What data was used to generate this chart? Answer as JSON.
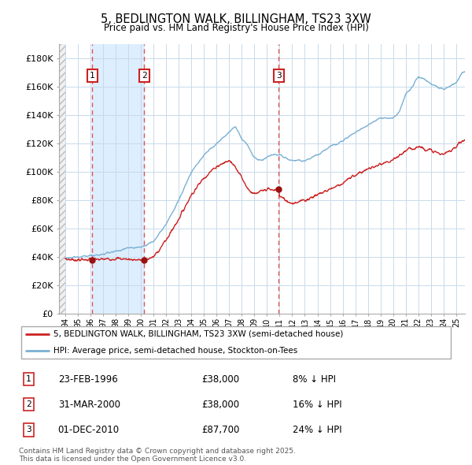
{
  "title": "5, BEDLINGTON WALK, BILLINGHAM, TS23 3XW",
  "subtitle": "Price paid vs. HM Land Registry's House Price Index (HPI)",
  "ylim": [
    0,
    190000
  ],
  "yticks": [
    0,
    20000,
    40000,
    60000,
    80000,
    100000,
    120000,
    140000,
    160000,
    180000
  ],
  "ytick_labels": [
    "£0",
    "£20K",
    "£40K",
    "£60K",
    "£80K",
    "£100K",
    "£120K",
    "£140K",
    "£160K",
    "£180K"
  ],
  "sale_decimal": [
    1996.14,
    2000.25,
    2010.92
  ],
  "sale_prices": [
    38000,
    38000,
    87700
  ],
  "sale_labels": [
    "1",
    "2",
    "3"
  ],
  "hpi_color": "#7ab0d4",
  "price_color": "#cc2222",
  "vline_color": "#dd4444",
  "grid_color": "#c8daea",
  "bg_band_color": "#ddeeff",
  "legend_label_price": "5, BEDLINGTON WALK, BILLINGHAM, TS23 3XW (semi-detached house)",
  "legend_label_hpi": "HPI: Average price, semi-detached house, Stockton-on-Tees",
  "table_entries": [
    {
      "num": "1",
      "date": "23-FEB-1996",
      "price": "£38,000",
      "pct": "8% ↓ HPI"
    },
    {
      "num": "2",
      "date": "31-MAR-2000",
      "price": "£38,000",
      "pct": "16% ↓ HPI"
    },
    {
      "num": "3",
      "date": "01-DEC-2010",
      "price": "£87,700",
      "pct": "24% ↓ HPI"
    }
  ],
  "footer": "Contains HM Land Registry data © Crown copyright and database right 2025.\nThis data is licensed under the Open Government Licence v3.0.",
  "xlim_start": 1993.5,
  "xlim_end": 2025.7,
  "hpi_key_years": [
    1994,
    1995,
    1996,
    1997,
    1998,
    1999,
    2000,
    2001,
    2002,
    2003,
    2004,
    2005,
    2006,
    2007,
    2007.5,
    2008,
    2008.5,
    2009,
    2009.5,
    2010,
    2010.5,
    2011,
    2011.5,
    2012,
    2013,
    2014,
    2015,
    2016,
    2017,
    2018,
    2019,
    2020,
    2020.5,
    2021,
    2021.5,
    2022,
    2022.5,
    2023,
    2023.5,
    2024,
    2024.5,
    2025,
    2025.5
  ],
  "hpi_key_vals": [
    39000,
    40000,
    41000,
    42000,
    44000,
    46500,
    47000,
    51000,
    63000,
    80000,
    100000,
    112000,
    120000,
    128000,
    132000,
    124000,
    118000,
    110000,
    108000,
    110000,
    112000,
    112000,
    110000,
    108000,
    108000,
    112000,
    118000,
    122000,
    128000,
    133000,
    138000,
    138000,
    142000,
    155000,
    160000,
    167000,
    165000,
    162000,
    160000,
    158000,
    160000,
    163000,
    170000
  ],
  "price_key_years": [
    1994,
    1995,
    1996,
    1996.15,
    1997,
    1998,
    1999,
    2000,
    2000.25,
    2001,
    2002,
    2003,
    2004,
    2005,
    2006,
    2007,
    2007.5,
    2008,
    2008.5,
    2009,
    2009.5,
    2010,
    2010.5,
    2010.92,
    2011,
    2011.5,
    2012,
    2013,
    2014,
    2015,
    2016,
    2017,
    2018,
    2019,
    2020,
    2021,
    2022,
    2023,
    2024,
    2025,
    2025.5
  ],
  "price_key_vals": [
    38500,
    38000,
    38500,
    38000,
    38500,
    39000,
    38500,
    38000,
    38000,
    40000,
    52000,
    67000,
    84000,
    96000,
    104000,
    108000,
    104000,
    96000,
    88000,
    84000,
    86000,
    88000,
    87000,
    87700,
    83000,
    80000,
    78000,
    80000,
    84000,
    88000,
    92000,
    98000,
    102000,
    105000,
    108000,
    115000,
    118000,
    115000,
    112000,
    118000,
    122000
  ]
}
